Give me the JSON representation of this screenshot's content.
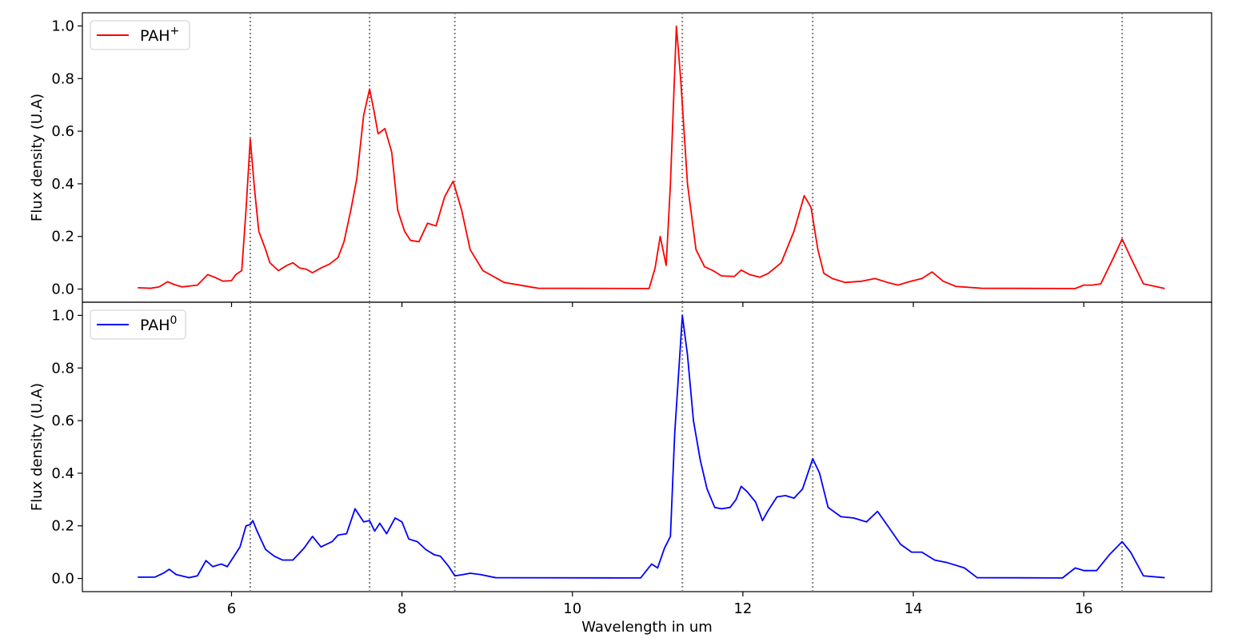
{
  "chart_data": {
    "type": "line",
    "xlabel": "Wavelength in um",
    "xlim": [
      4.25,
      17.5
    ],
    "x_ticks": [
      6,
      8,
      10,
      12,
      14,
      16
    ],
    "reference_lines": [
      6.22,
      7.62,
      8.62,
      11.29,
      12.82,
      16.45
    ],
    "panels": [
      {
        "ylabel": "Flux density (U.A)",
        "ylim": [
          -0.05,
          1.05
        ],
        "y_ticks": [
          0.0,
          0.2,
          0.4,
          0.6,
          0.8,
          1.0
        ],
        "legend": {
          "text": "PAH",
          "superscript": "+",
          "position": "upper-left"
        },
        "series": [
          {
            "name": "PAH+",
            "color": "#ff0000",
            "points": [
              [
                4.9,
                0.005
              ],
              [
                5.05,
                0.003
              ],
              [
                5.15,
                0.008
              ],
              [
                5.25,
                0.028
              ],
              [
                5.32,
                0.018
              ],
              [
                5.42,
                0.008
              ],
              [
                5.6,
                0.015
              ],
              [
                5.72,
                0.055
              ],
              [
                5.8,
                0.045
              ],
              [
                5.9,
                0.03
              ],
              [
                6.0,
                0.032
              ],
              [
                6.05,
                0.055
              ],
              [
                6.12,
                0.07
              ],
              [
                6.17,
                0.3
              ],
              [
                6.22,
                0.57
              ],
              [
                6.27,
                0.38
              ],
              [
                6.32,
                0.22
              ],
              [
                6.4,
                0.15
              ],
              [
                6.45,
                0.1
              ],
              [
                6.55,
                0.07
              ],
              [
                6.65,
                0.09
              ],
              [
                6.72,
                0.1
              ],
              [
                6.8,
                0.08
              ],
              [
                6.88,
                0.075
              ],
              [
                6.95,
                0.062
              ],
              [
                7.05,
                0.08
              ],
              [
                7.15,
                0.095
              ],
              [
                7.25,
                0.12
              ],
              [
                7.32,
                0.18
              ],
              [
                7.4,
                0.3
              ],
              [
                7.47,
                0.42
              ],
              [
                7.55,
                0.66
              ],
              [
                7.62,
                0.76
              ],
              [
                7.67,
                0.68
              ],
              [
                7.72,
                0.59
              ],
              [
                7.8,
                0.61
              ],
              [
                7.88,
                0.52
              ],
              [
                7.95,
                0.3
              ],
              [
                8.03,
                0.22
              ],
              [
                8.1,
                0.185
              ],
              [
                8.2,
                0.18
              ],
              [
                8.3,
                0.25
              ],
              [
                8.4,
                0.24
              ],
              [
                8.5,
                0.35
              ],
              [
                8.6,
                0.41
              ],
              [
                8.7,
                0.3
              ],
              [
                8.8,
                0.15
              ],
              [
                8.95,
                0.07
              ],
              [
                9.2,
                0.025
              ],
              [
                9.6,
                0.003
              ],
              [
                10.9,
                0.002
              ],
              [
                10.97,
                0.08
              ],
              [
                11.03,
                0.2
              ],
              [
                11.1,
                0.09
              ],
              [
                11.15,
                0.4
              ],
              [
                11.22,
                0.999
              ],
              [
                11.27,
                0.8
              ],
              [
                11.35,
                0.4
              ],
              [
                11.45,
                0.15
              ],
              [
                11.55,
                0.085
              ],
              [
                11.65,
                0.07
              ],
              [
                11.75,
                0.05
              ],
              [
                11.9,
                0.048
              ],
              [
                11.98,
                0.072
              ],
              [
                12.08,
                0.055
              ],
              [
                12.2,
                0.045
              ],
              [
                12.3,
                0.06
              ],
              [
                12.45,
                0.1
              ],
              [
                12.6,
                0.22
              ],
              [
                12.72,
                0.355
              ],
              [
                12.8,
                0.31
              ],
              [
                12.88,
                0.15
              ],
              [
                12.95,
                0.06
              ],
              [
                13.05,
                0.04
              ],
              [
                13.2,
                0.025
              ],
              [
                13.4,
                0.03
              ],
              [
                13.55,
                0.04
              ],
              [
                13.7,
                0.025
              ],
              [
                13.82,
                0.015
              ],
              [
                13.95,
                0.028
              ],
              [
                14.1,
                0.04
              ],
              [
                14.22,
                0.065
              ],
              [
                14.35,
                0.03
              ],
              [
                14.5,
                0.01
              ],
              [
                14.8,
                0.003
              ],
              [
                15.9,
                0.002
              ],
              [
                16.0,
                0.015
              ],
              [
                16.1,
                0.015
              ],
              [
                16.2,
                0.02
              ],
              [
                16.35,
                0.12
              ],
              [
                16.45,
                0.19
              ],
              [
                16.55,
                0.12
              ],
              [
                16.7,
                0.02
              ],
              [
                16.95,
                0.002
              ]
            ]
          }
        ]
      },
      {
        "ylabel": "Flux density (U.A)",
        "ylim": [
          -0.05,
          1.05
        ],
        "y_ticks": [
          0.0,
          0.2,
          0.4,
          0.6,
          0.8,
          1.0
        ],
        "legend": {
          "text": "PAH",
          "superscript": "0",
          "position": "upper-left"
        },
        "series": [
          {
            "name": "PAH0",
            "color": "#0000ff",
            "points": [
              [
                4.9,
                0.005
              ],
              [
                5.1,
                0.005
              ],
              [
                5.2,
                0.02
              ],
              [
                5.27,
                0.035
              ],
              [
                5.35,
                0.015
              ],
              [
                5.5,
                0.003
              ],
              [
                5.6,
                0.01
              ],
              [
                5.7,
                0.068
              ],
              [
                5.78,
                0.045
              ],
              [
                5.88,
                0.055
              ],
              [
                5.95,
                0.045
              ],
              [
                6.02,
                0.08
              ],
              [
                6.1,
                0.12
              ],
              [
                6.17,
                0.2
              ],
              [
                6.22,
                0.205
              ],
              [
                6.25,
                0.22
              ],
              [
                6.3,
                0.18
              ],
              [
                6.4,
                0.11
              ],
              [
                6.5,
                0.085
              ],
              [
                6.6,
                0.07
              ],
              [
                6.72,
                0.07
              ],
              [
                6.85,
                0.115
              ],
              [
                6.95,
                0.16
              ],
              [
                7.05,
                0.12
              ],
              [
                7.18,
                0.14
              ],
              [
                7.25,
                0.165
              ],
              [
                7.35,
                0.17
              ],
              [
                7.45,
                0.265
              ],
              [
                7.55,
                0.215
              ],
              [
                7.62,
                0.22
              ],
              [
                7.68,
                0.18
              ],
              [
                7.74,
                0.21
              ],
              [
                7.82,
                0.17
              ],
              [
                7.92,
                0.23
              ],
              [
                8.0,
                0.215
              ],
              [
                8.08,
                0.15
              ],
              [
                8.18,
                0.14
              ],
              [
                8.28,
                0.11
              ],
              [
                8.38,
                0.09
              ],
              [
                8.45,
                0.085
              ],
              [
                8.55,
                0.045
              ],
              [
                8.62,
                0.01
              ],
              [
                8.72,
                0.015
              ],
              [
                8.8,
                0.02
              ],
              [
                8.92,
                0.015
              ],
              [
                9.1,
                0.003
              ],
              [
                10.8,
                0.002
              ],
              [
                10.93,
                0.055
              ],
              [
                11.0,
                0.04
              ],
              [
                11.08,
                0.115
              ],
              [
                11.15,
                0.16
              ],
              [
                11.2,
                0.55
              ],
              [
                11.29,
                0.999
              ],
              [
                11.35,
                0.85
              ],
              [
                11.42,
                0.6
              ],
              [
                11.5,
                0.45
              ],
              [
                11.58,
                0.34
              ],
              [
                11.67,
                0.27
              ],
              [
                11.75,
                0.265
              ],
              [
                11.85,
                0.27
              ],
              [
                11.92,
                0.3
              ],
              [
                11.98,
                0.35
              ],
              [
                12.05,
                0.33
              ],
              [
                12.15,
                0.29
              ],
              [
                12.23,
                0.22
              ],
              [
                12.3,
                0.26
              ],
              [
                12.4,
                0.31
              ],
              [
                12.5,
                0.315
              ],
              [
                12.6,
                0.305
              ],
              [
                12.7,
                0.34
              ],
              [
                12.82,
                0.455
              ],
              [
                12.9,
                0.4
              ],
              [
                13.0,
                0.27
              ],
              [
                13.15,
                0.235
              ],
              [
                13.3,
                0.23
              ],
              [
                13.45,
                0.215
              ],
              [
                13.58,
                0.255
              ],
              [
                13.7,
                0.2
              ],
              [
                13.85,
                0.13
              ],
              [
                13.98,
                0.1
              ],
              [
                14.1,
                0.1
              ],
              [
                14.25,
                0.07
              ],
              [
                14.4,
                0.06
              ],
              [
                14.6,
                0.04
              ],
              [
                14.75,
                0.003
              ],
              [
                15.75,
                0.002
              ],
              [
                15.9,
                0.04
              ],
              [
                16.0,
                0.03
              ],
              [
                16.15,
                0.03
              ],
              [
                16.3,
                0.09
              ],
              [
                16.45,
                0.14
              ],
              [
                16.55,
                0.1
              ],
              [
                16.7,
                0.01
              ],
              [
                16.95,
                0.003
              ]
            ]
          }
        ]
      }
    ]
  }
}
